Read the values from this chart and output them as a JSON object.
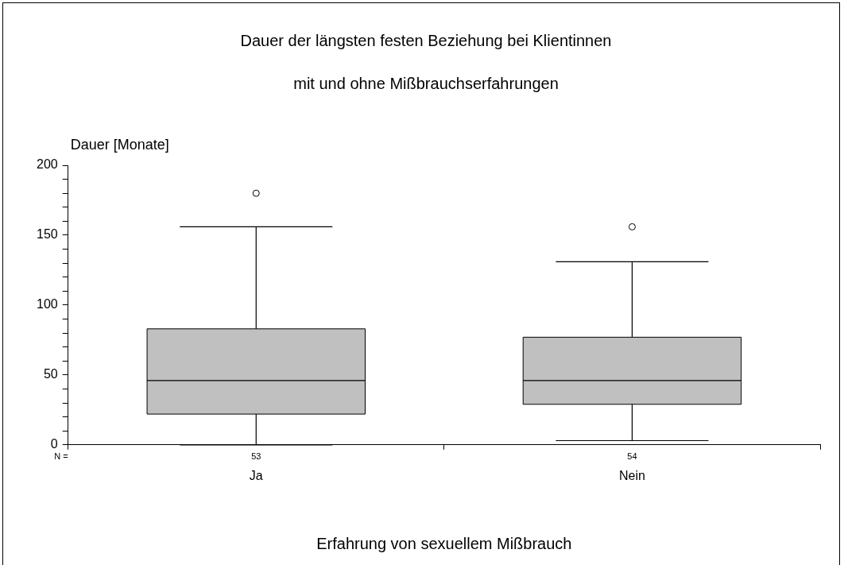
{
  "chart_data": {
    "type": "box",
    "title": "Dauer der längsten festen Beziehung bei Klientinnen",
    "subtitle": "mit und ohne Mißbrauchserfahrungen",
    "xlabel": "Erfahrung von sexuellem Mißbrauch",
    "ylabel": "Dauer [Monate]",
    "categories": [
      "Ja",
      "Nein"
    ],
    "color": "#c0c0c0",
    "boxes": [
      {
        "low": 0,
        "q1": 22,
        "median": 46,
        "q3": 83,
        "high": 156,
        "outliers": [
          180
        ]
      },
      {
        "low": 3,
        "q1": 29,
        "median": 46,
        "q3": 77,
        "high": 131,
        "outliers": [
          156
        ]
      }
    ],
    "ylim": [
      0,
      200
    ],
    "yticks": [
      0,
      {
        "value": 10,
        "label": null
      },
      {
        "value": 20,
        "label": null
      },
      {
        "value": 30,
        "label": null
      },
      {
        "value": 40,
        "label": null
      },
      50,
      {
        "value": 60,
        "label": null
      },
      {
        "value": 70,
        "label": null
      },
      {
        "value": 80,
        "label": null
      },
      {
        "value": 90,
        "label": null
      },
      100,
      {
        "value": 110,
        "label": null
      },
      {
        "value": 120,
        "label": null
      },
      {
        "value": 130,
        "label": null
      },
      {
        "value": 140,
        "label": null
      },
      150,
      {
        "value": 160,
        "label": null
      },
      {
        "value": 170,
        "label": null
      },
      {
        "value": 180,
        "label": null
      },
      {
        "value": 190,
        "label": null
      },
      200
    ],
    "grid": false,
    "legend": false,
    "annotations": [
      "N =",
      "53",
      "54"
    ]
  }
}
